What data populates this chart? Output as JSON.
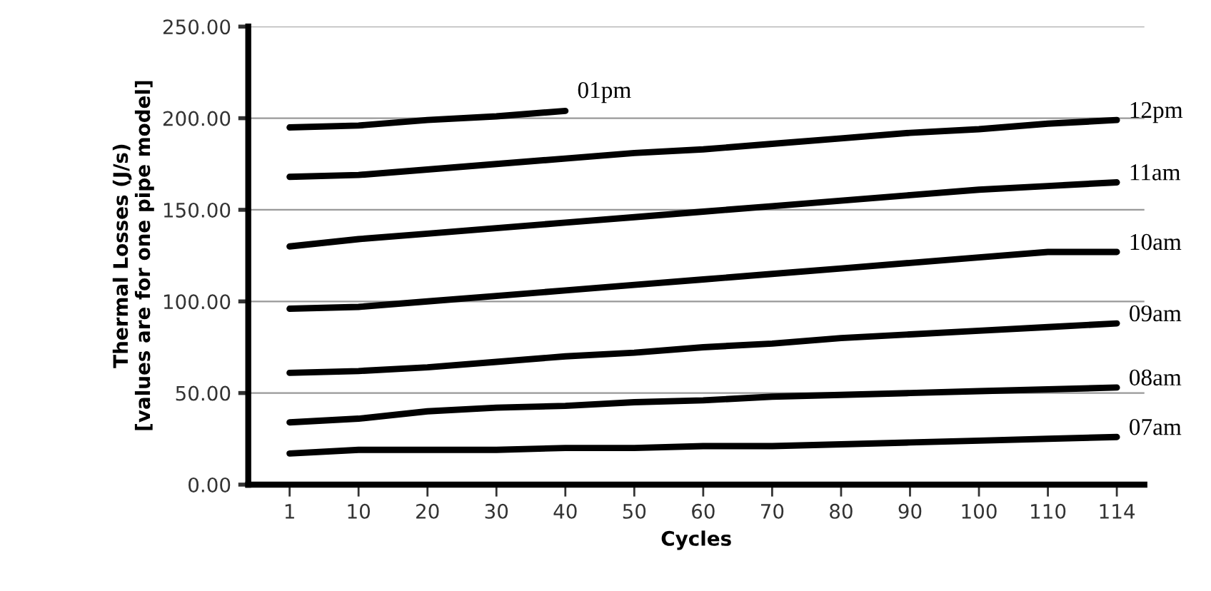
{
  "chart_data": {
    "type": "line",
    "xlabel": "Cycles",
    "ylabel": "Thermal Losses (J/s)\n[values are for one pipe model]",
    "categories": [
      "1",
      "10",
      "20",
      "30",
      "40",
      "50",
      "60",
      "70",
      "80",
      "90",
      "100",
      "110",
      "114"
    ],
    "series": [
      {
        "name": "07am",
        "color": "#000000",
        "values": [
          17,
          19,
          19,
          19,
          20,
          20,
          21,
          21,
          22,
          23,
          24,
          25,
          26
        ]
      },
      {
        "name": "08am",
        "color": "#000000",
        "values": [
          34,
          36,
          40,
          42,
          43,
          45,
          46,
          48,
          49,
          50,
          51,
          52,
          53
        ]
      },
      {
        "name": "09am",
        "color": "#000000",
        "values": [
          61,
          62,
          64,
          67,
          70,
          72,
          75,
          77,
          80,
          82,
          84,
          86,
          88
        ]
      },
      {
        "name": "10am",
        "color": "#000000",
        "values": [
          96,
          97,
          100,
          103,
          106,
          109,
          112,
          115,
          118,
          121,
          124,
          127,
          127
        ]
      },
      {
        "name": "11am",
        "color": "#000000",
        "values": [
          130,
          134,
          137,
          140,
          143,
          146,
          149,
          152,
          155,
          158,
          161,
          163,
          165
        ]
      },
      {
        "name": "12pm",
        "color": "#000000",
        "values": [
          168,
          169,
          172,
          175,
          178,
          181,
          183,
          186,
          189,
          192,
          194,
          197,
          199
        ]
      },
      {
        "name": "01pm",
        "color": "#000000",
        "values": [
          195,
          196,
          199,
          201,
          204,
          null,
          null,
          null,
          null,
          null,
          null,
          null,
          null
        ]
      }
    ],
    "ylim": [
      0,
      250
    ],
    "yticks": [
      {
        "value": 0,
        "label": "0.00"
      },
      {
        "value": 50,
        "label": "50.00"
      },
      {
        "value": 100,
        "label": "100.00"
      },
      {
        "value": 150,
        "label": "150.00"
      },
      {
        "value": 200,
        "label": "200.00"
      },
      {
        "value": 250,
        "label": "250.00"
      }
    ],
    "grid": "y",
    "legend": false,
    "marker": "none",
    "line_style": "solid"
  }
}
